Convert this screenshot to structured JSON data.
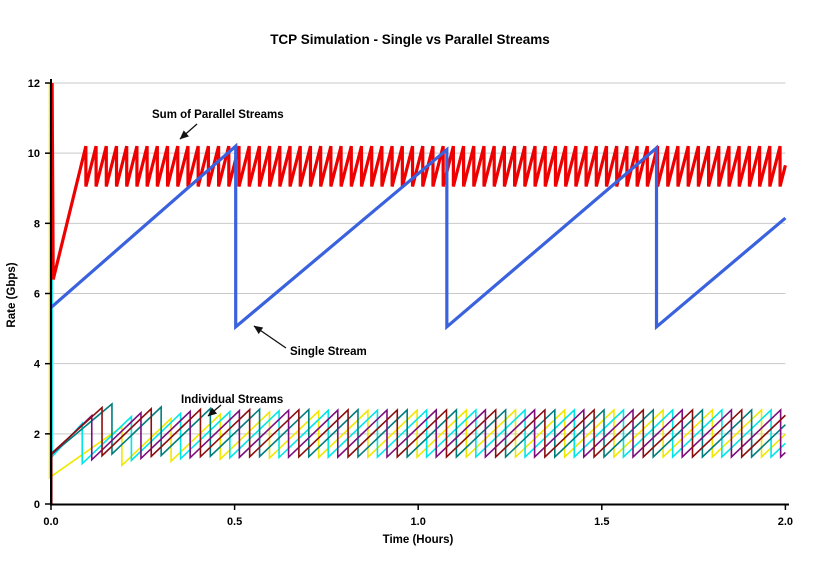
{
  "page": {
    "background": "#ffffff"
  },
  "chart_data": {
    "type": "line",
    "title": "TCP Simulation - Single vs Parallel Streams",
    "xlabel": "Time (Hours)",
    "ylabel": "Rate (Gbps)",
    "xlim": [
      0,
      2.0
    ],
    "ylim": [
      0,
      12
    ],
    "xticks": [
      "0.0",
      "0.5",
      "1.0",
      "1.5",
      "2.0"
    ],
    "yticks": [
      "0",
      "2",
      "4",
      "6",
      "8",
      "10",
      "12"
    ],
    "grid": "horizontal-only",
    "grid_color": "#c9c9c9",
    "axis_color": "#000000",
    "series": {
      "single_stream": {
        "label": "Single Stream",
        "color": "#3a62de",
        "width": 3.2,
        "points": [
          [
            0,
            5.6
          ],
          [
            0.503,
            10.2
          ],
          [
            0.503,
            5.05
          ],
          [
            1.078,
            10.1
          ],
          [
            1.078,
            5.05
          ],
          [
            1.649,
            10.15
          ],
          [
            1.649,
            5.05
          ],
          [
            2.0,
            8.15
          ]
        ]
      },
      "sum_of_parallel_streams": {
        "label": "Sum of Parallel Streams",
        "color": "#ee0000",
        "width": 3.2,
        "initial": [
          [
            0.003,
            12
          ],
          [
            0.006,
            6.4
          ]
        ],
        "ramp_end": [
          0.095,
          10.2
        ],
        "sawtooth": {
          "min": 9.05,
          "max": 10.2,
          "period": 0.0278,
          "end": 2.0
        }
      },
      "individual_streams": {
        "label": "Individual Streams",
        "width": 1.6,
        "sawtooth": {
          "period": 0.134,
          "rise_slope": 10.0,
          "drop_factor": 0.5,
          "end": 2.0
        },
        "streams": [
          {
            "name": "stream-yellow",
            "color": "#f0e800",
            "init_t": -0.004,
            "init_top": 12.0,
            "start": 0.75,
            "first_peak": 2.2,
            "first_drop_t": 0.193
          },
          {
            "name": "stream-cyan",
            "color": "#00e6e6",
            "init_t": 0.003,
            "init_top": 11.3,
            "start": 1.35,
            "first_peak": 2.3,
            "first_drop_t": 0.085
          },
          {
            "name": "stream-teal",
            "color": "#007d7d",
            "init_t": 0.0,
            "init_top": 1.4,
            "start": 1.4,
            "first_peak": 2.85,
            "first_drop_t": 0.166
          },
          {
            "name": "stream-purple",
            "color": "#7d0d7d",
            "init_t": 0.002,
            "init_top": 0.0,
            "start": 1.42,
            "first_peak": 2.52,
            "first_drop_t": 0.111
          },
          {
            "name": "stream-maroon",
            "color": "#8b0e0e",
            "init_t": 0.002,
            "init_top": 0.0,
            "start": 1.45,
            "first_peak": 2.75,
            "first_drop_t": 0.139
          }
        ]
      }
    },
    "annotations": [
      {
        "text": "Sum of Parallel Streams",
        "tx": 152,
        "ty": 118,
        "arrow": [
          197,
          124,
          180,
          139
        ]
      },
      {
        "text": "Single Stream",
        "tx": 290,
        "ty": 355,
        "arrow": [
          286,
          348,
          254,
          326
        ]
      },
      {
        "text": "Individual Streams",
        "tx": 181,
        "ty": 403,
        "arrow": [
          221,
          405,
          208,
          416
        ]
      }
    ]
  }
}
